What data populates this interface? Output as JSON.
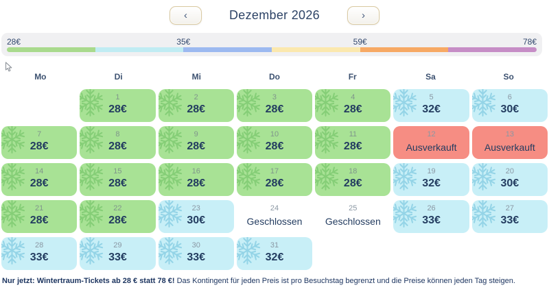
{
  "header": {
    "title": "Dezember 2026",
    "prev_label": "‹",
    "next_label": "›"
  },
  "legend": {
    "labels": [
      "28€",
      "35€",
      "59€",
      "78€"
    ],
    "segments": [
      {
        "name": "price-low-green",
        "color": "#a9da8d"
      },
      {
        "name": "price-cyan",
        "color": "#c0ecf3"
      },
      {
        "name": "price-blue",
        "color": "#9cb9f0"
      },
      {
        "name": "price-cream",
        "color": "#fbe8ae"
      },
      {
        "name": "price-orange",
        "color": "#f7a964"
      },
      {
        "name": "price-high-purple",
        "color": "#c68dc6"
      }
    ]
  },
  "weekdays": [
    "Mo",
    "Di",
    "Mi",
    "Do",
    "Fr",
    "Sa",
    "So"
  ],
  "calendar": {
    "weeks": [
      [
        {
          "type": "empty"
        },
        {
          "type": "low",
          "day": "1",
          "price": "28€"
        },
        {
          "type": "low",
          "day": "2",
          "price": "28€"
        },
        {
          "type": "low",
          "day": "3",
          "price": "28€"
        },
        {
          "type": "low",
          "day": "4",
          "price": "28€"
        },
        {
          "type": "mid",
          "day": "5",
          "price": "32€"
        },
        {
          "type": "mid",
          "day": "6",
          "price": "30€"
        }
      ],
      [
        {
          "type": "low",
          "day": "7",
          "price": "28€"
        },
        {
          "type": "low",
          "day": "8",
          "price": "28€"
        },
        {
          "type": "low",
          "day": "9",
          "price": "28€"
        },
        {
          "type": "low",
          "day": "10",
          "price": "28€"
        },
        {
          "type": "low",
          "day": "11",
          "price": "28€"
        },
        {
          "type": "soldout",
          "day": "12",
          "label": "Ausverkauft"
        },
        {
          "type": "soldout",
          "day": "13",
          "label": "Ausverkauft"
        }
      ],
      [
        {
          "type": "low",
          "day": "14",
          "price": "28€"
        },
        {
          "type": "low",
          "day": "15",
          "price": "28€"
        },
        {
          "type": "low",
          "day": "16",
          "price": "28€"
        },
        {
          "type": "low",
          "day": "17",
          "price": "28€"
        },
        {
          "type": "low",
          "day": "18",
          "price": "28€"
        },
        {
          "type": "mid",
          "day": "19",
          "price": "32€"
        },
        {
          "type": "mid",
          "day": "20",
          "price": "30€"
        }
      ],
      [
        {
          "type": "low",
          "day": "21",
          "price": "28€"
        },
        {
          "type": "low",
          "day": "22",
          "price": "28€"
        },
        {
          "type": "mid",
          "day": "23",
          "price": "30€"
        },
        {
          "type": "closed",
          "day": "24",
          "label": "Geschlossen"
        },
        {
          "type": "closed",
          "day": "25",
          "label": "Geschlossen"
        },
        {
          "type": "mid",
          "day": "26",
          "price": "33€"
        },
        {
          "type": "mid",
          "day": "27",
          "price": "33€"
        }
      ],
      [
        {
          "type": "mid",
          "day": "28",
          "price": "33€"
        },
        {
          "type": "mid",
          "day": "29",
          "price": "33€"
        },
        {
          "type": "mid",
          "day": "30",
          "price": "33€"
        },
        {
          "type": "mid",
          "day": "31",
          "price": "32€"
        },
        {
          "type": "empty"
        },
        {
          "type": "empty"
        },
        {
          "type": "empty"
        }
      ]
    ]
  },
  "note": {
    "bold": "Nur jetzt: Wintertraum-Tickets ab 28 € statt 78 €!",
    "regular": "Das Kontingent für jeden Preis ist pro Besuchstag begrenzt und die Preise können jeden Tag steigen."
  },
  "colors": {
    "cell_low": "#a8e295",
    "cell_mid": "#c8eff7",
    "cell_soldout": "#f68d83",
    "text_navy": "#233c60",
    "day_number_gray": "#8a97a3",
    "legend_background": "#f0f0f2"
  }
}
